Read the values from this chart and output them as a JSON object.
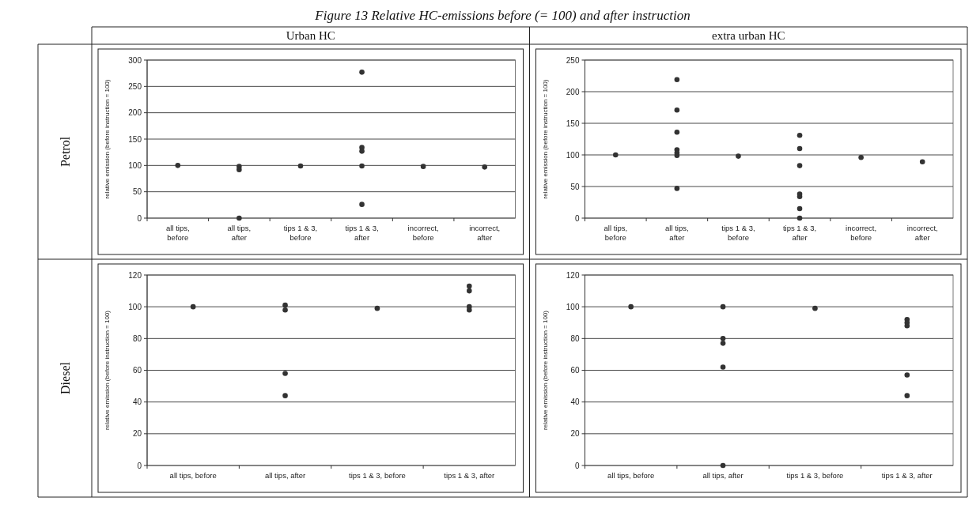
{
  "chart_data": [
    {
      "type": "scatter",
      "title": "Urban HC",
      "annotations": [
        "Figure 13 Relative HC-emissions before (= 100) and after instruction",
        "Petrol"
      ],
      "ylabel": "relative emission (before instruction = 100)",
      "categories": [
        "all tips, before",
        "all tips, after",
        "tips 1 & 3, before",
        "tips 1 & 3, after",
        "incorrect, before",
        "incorrect, after"
      ],
      "series": [
        {
          "color": "#333333",
          "x": [
            "all tips, before",
            "all tips, after",
            "all tips, after",
            "all tips, after",
            "tips 1 & 3, before",
            "tips 1 & 3, after",
            "tips 1 & 3, after",
            "tips 1 & 3, after",
            "tips 1 & 3, after",
            "tips 1 & 3, after",
            "incorrect, before",
            "incorrect, after"
          ],
          "values": [
            100,
            98,
            92,
            0,
            99,
            277,
            134,
            127,
            99,
            26,
            98,
            97
          ]
        }
      ],
      "ylim": [
        0,
        300
      ],
      "yticks": [
        0,
        50,
        100,
        150,
        200,
        250,
        300
      ],
      "grid": "y",
      "marker": "circle"
    },
    {
      "type": "scatter",
      "title": "extra urban HC",
      "ylabel": "relative emission (before instruction = 100)",
      "categories": [
        "all tips, before",
        "all tips, after",
        "tips 1 & 3, before",
        "tips 1 & 3, after",
        "incorrect, before",
        "incorrect, after"
      ],
      "series": [
        {
          "color": "#333333",
          "x": [
            "all tips, before",
            "all tips, after",
            "all tips, after",
            "all tips, after",
            "all tips, after",
            "all tips, after",
            "all tips, after",
            "all tips, after",
            "tips 1 & 3, before",
            "tips 1 & 3, after",
            "tips 1 & 3, after",
            "tips 1 & 3, after",
            "tips 1 & 3, after",
            "tips 1 & 3, after",
            "tips 1 & 3, after",
            "tips 1 & 3, after",
            "incorrect, before",
            "incorrect, after"
          ],
          "values": [
            100,
            219,
            171,
            136,
            108,
            103,
            99,
            47,
            98,
            131,
            110,
            83,
            38,
            34,
            15,
            0,
            96,
            89
          ]
        }
      ],
      "ylim": [
        0,
        250
      ],
      "yticks": [
        0,
        50,
        100,
        150,
        200,
        250
      ],
      "grid": "y",
      "marker": "circle"
    },
    {
      "type": "scatter",
      "annotations": [
        "Diesel"
      ],
      "ylabel": "relative emission (before instruction = 100)",
      "categories": [
        "all tips, before",
        "all tips, after",
        "tips 1 & 3, before",
        "tips 1 & 3, after"
      ],
      "series": [
        {
          "color": "#333333",
          "x": [
            "all tips, before",
            "all tips, after",
            "all tips, after",
            "all tips, after",
            "all tips, after",
            "tips 1 & 3, before",
            "tips 1 & 3, after",
            "tips 1 & 3, after",
            "tips 1 & 3, after",
            "tips 1 & 3, after"
          ],
          "values": [
            100,
            101,
            98,
            58,
            44,
            99,
            113,
            110,
            100,
            98
          ]
        }
      ],
      "ylim": [
        0,
        120
      ],
      "yticks": [
        0,
        20,
        40,
        60,
        80,
        100,
        120
      ],
      "grid": "y",
      "marker": "circle"
    },
    {
      "type": "scatter",
      "ylabel": "relative emission (before instruction = 100)",
      "categories": [
        "all tips, before",
        "all tips, after",
        "tips 1 & 3, before",
        "tips 1 & 3, after"
      ],
      "series": [
        {
          "color": "#333333",
          "x": [
            "all tips, before",
            "all tips, after",
            "all tips, after",
            "all tips, after",
            "all tips, after",
            "all tips, after",
            "tips 1 & 3, before",
            "tips 1 & 3, after",
            "tips 1 & 3, after",
            "tips 1 & 3, after",
            "tips 1 & 3, after",
            "tips 1 & 3, after"
          ],
          "values": [
            100,
            100,
            80,
            77,
            62,
            0,
            99,
            92,
            90,
            88,
            57,
            44
          ]
        }
      ],
      "ylim": [
        0,
        120
      ],
      "yticks": [
        0,
        20,
        40,
        60,
        80,
        100,
        120
      ],
      "grid": "y",
      "marker": "circle"
    }
  ]
}
